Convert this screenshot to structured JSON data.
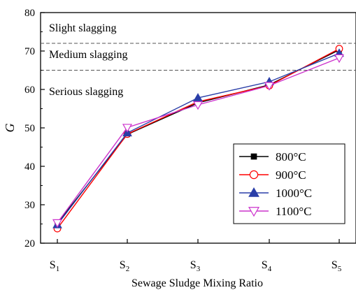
{
  "chart_data": {
    "type": "line",
    "title": "",
    "xlabel": "Sewage  Sludge  Mixing  Ratio",
    "ylabel": "G",
    "categories": [
      "S1",
      "S2",
      "S3",
      "S4",
      "S5"
    ],
    "category_labels": [
      {
        "base": "S",
        "sub": "1"
      },
      {
        "base": "S",
        "sub": "2"
      },
      {
        "base": "S",
        "sub": "3"
      },
      {
        "base": "S",
        "sub": "4"
      },
      {
        "base": "S",
        "sub": "5"
      }
    ],
    "ylim": [
      20,
      80
    ],
    "yticks": [
      "20",
      "30",
      "40",
      "50",
      "60",
      "70",
      "80"
    ],
    "grid": false,
    "legend_position": "bottom-right",
    "series": [
      {
        "name": "800°C",
        "color": "#000000",
        "marker": "square",
        "marker_fill": "filled",
        "values": [
          25.2,
          48.3,
          56.5,
          61.2,
          70.3
        ]
      },
      {
        "name": "900°C",
        "color": "#ff0000",
        "marker": "circle",
        "marker_fill": "open",
        "values": [
          23.8,
          48.4,
          56.8,
          61.0,
          70.6
        ]
      },
      {
        "name": "1000°C",
        "color": "#2a3ea8",
        "marker": "triangle-up",
        "marker_fill": "filled",
        "values": [
          24.8,
          48.7,
          57.8,
          62.0,
          69.4
        ]
      },
      {
        "name": "1100°C",
        "color": "#cc33cc",
        "marker": "triangle-down",
        "marker_fill": "open",
        "values": [
          25.3,
          50.1,
          56.0,
          61.0,
          68.2
        ]
      }
    ],
    "threshold_lines": [
      72,
      65
    ],
    "annotations": [
      "Slight slagging",
      "Medium slagging",
      "Serious slagging"
    ]
  }
}
